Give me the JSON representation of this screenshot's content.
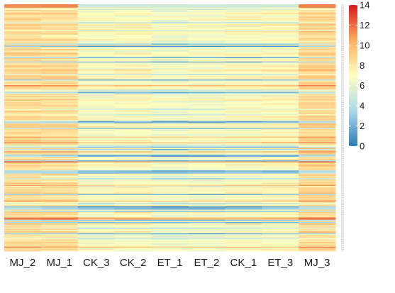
{
  "chart_data": {
    "type": "heatmap",
    "columns": [
      "MJ_2",
      "MJ_1",
      "CK_3",
      "CK_2",
      "ET_1",
      "ET_2",
      "CK_1",
      "ET_3",
      "MJ_3"
    ],
    "column_groups": [
      {
        "columns": [
          "MJ_2",
          "MJ_1"
        ],
        "base": [
          8.6,
          8.4
        ],
        "top_highlight": 11.5
      },
      {
        "columns": [
          "CK_3",
          "CK_2",
          "ET_1",
          "ET_2",
          "CK_1",
          "ET_3"
        ],
        "base": [
          6.9,
          7.0,
          6.6,
          6.7,
          7.0,
          7.2
        ],
        "top_highlight": 5.0
      },
      {
        "columns": [
          "MJ_3"
        ],
        "base": [
          8.8
        ],
        "top_highlight": 11.5
      }
    ],
    "row_count": 220,
    "value_range": [
      0,
      14
    ],
    "colorbar": {
      "ticks": [
        0,
        2,
        4,
        6,
        8,
        10,
        12,
        14
      ],
      "colors": [
        "#2c7bb6",
        "#abd9e9",
        "#ffffbf",
        "#fdae61",
        "#d7191c"
      ]
    },
    "row_labels_visible": false,
    "grid": false
  }
}
